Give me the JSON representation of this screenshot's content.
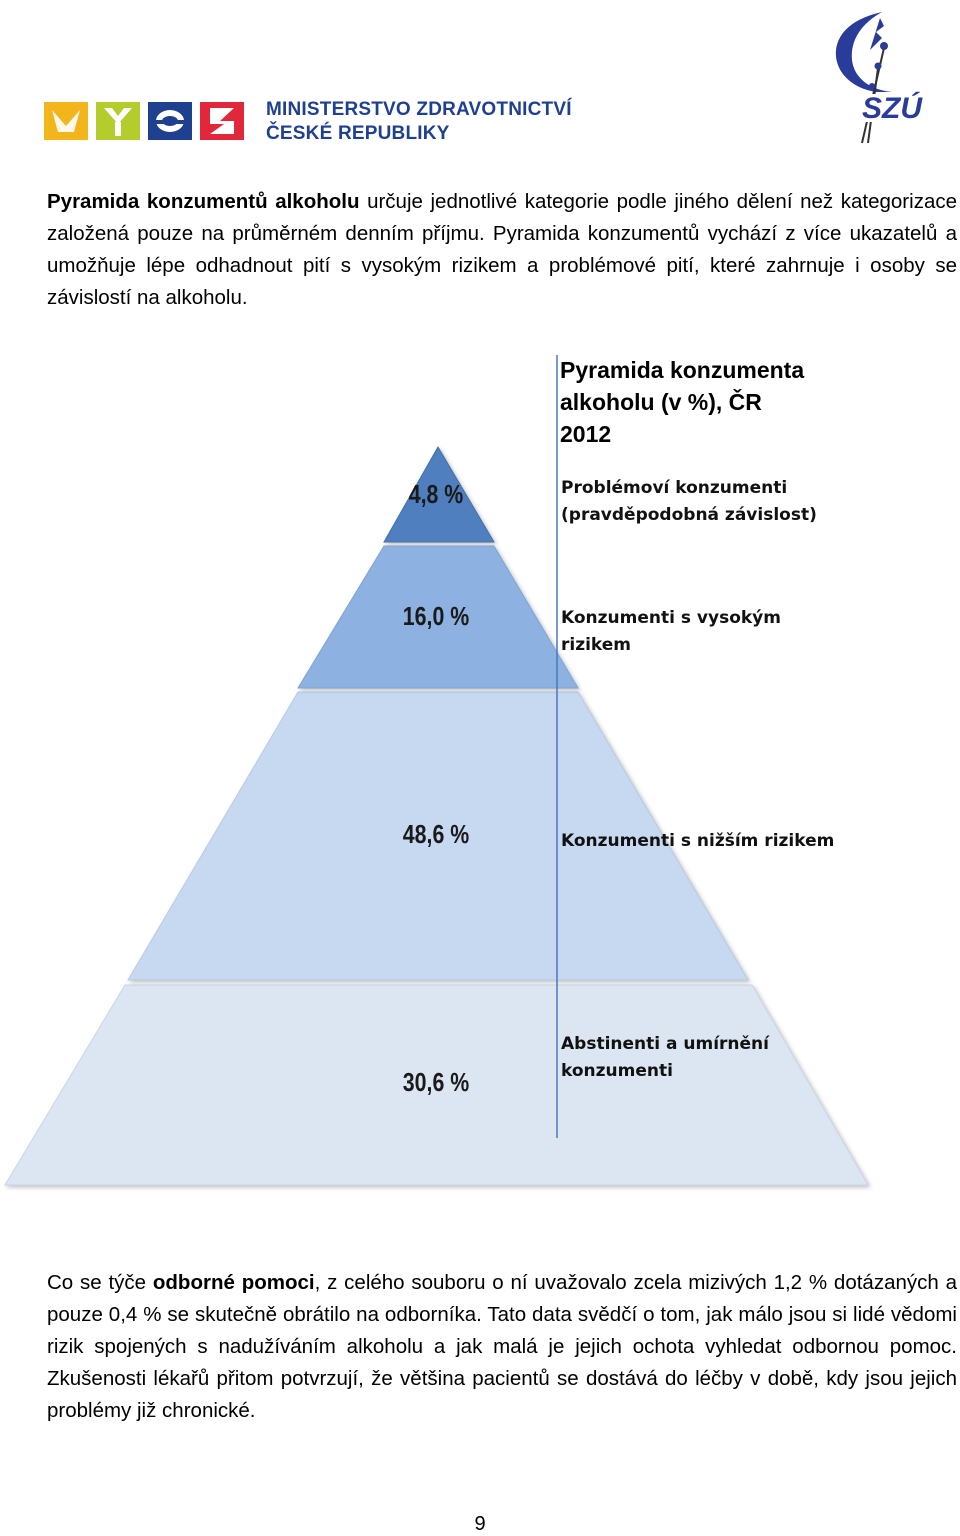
{
  "header": {
    "ministry_line1": "MINISTERSTVO ZDRAVOTNICTVÍ",
    "ministry_line2": "ČESKÉ REPUBLIKY",
    "szu_logo_text": "SZÚ"
  },
  "paragraph1": {
    "bold": "Pyramida konzumentů alkoholu",
    "rest": " určuje jednotlivé kategorie podle jiného dělení než kategorizace založená pouze na průměrném denním příjmu. Pyramida konzumentů vychází z více ukazatelů a umožňuje lépe odhadnout pití s vysokým rizikem a problémové pití, které zahrnuje i osoby se závislostí na alkoholu."
  },
  "chart_data": {
    "type": "pyramid",
    "title_lines": [
      "Pyramida konzumenta",
      "alkoholu (v %), ČR",
      "2012"
    ],
    "layers": [
      {
        "label_lines": [
          "Problémoví konzumenti",
          "(pravděpodobná závislost)"
        ],
        "value_text": "4,8 %",
        "value": 4.8,
        "color": "#4f7fbf"
      },
      {
        "label_lines": [
          "Konzumenti s vysokým",
          "rizikem"
        ],
        "value_text": "16,0 %",
        "value": 16.0,
        "color": "#8db1e0"
      },
      {
        "label_lines": [
          "Konzumenti s nižším rizikem"
        ],
        "value_text": "48,6 %",
        "value": 48.6,
        "color": "#c6d9f1"
      },
      {
        "label_lines": [
          "Abstinenti a umírnění",
          "konzumenti"
        ],
        "value_text": "30,6 %",
        "value": 30.6,
        "color": "#dce6f3"
      }
    ]
  },
  "paragraph2": {
    "pre": "Co se týče ",
    "bold": "odborné pomoci",
    "rest": ", z celého souboru o ní uvažovalo zcela mizivých 1,2 % dotázaných a pouze 0,4 % se skutečně obrátilo na odborníka. Tato data svědčí o tom, jak málo jsou si lidé vědomi rizik spojených s nadužíváním alkoholu a jak malá je jejich ochota vyhledat odbornou pomoc. Zkušenosti lékařů přitom potvrzují, že většina pacientů se dostává do léčby v době, kdy jsou jejich problémy již chronické."
  },
  "footer": {
    "page_number": "9"
  }
}
